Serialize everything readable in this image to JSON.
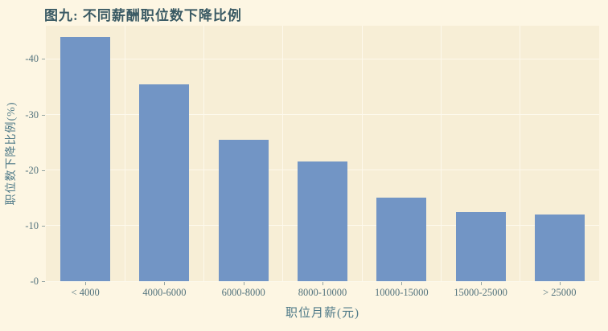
{
  "chart_data": {
    "type": "bar",
    "title": "图九: 不同薪酬职位数下降比例",
    "categories": [
      "< 4000",
      "4000-6000",
      "6000-8000",
      "8000-10000",
      "10000-15000",
      "15000-25000",
      "> 25000"
    ],
    "values": [
      -44,
      -35.5,
      -25.5,
      -21.5,
      -15,
      -12.5,
      -12
    ],
    "xlabel": "职位月薪(元)",
    "ylabel": "职位数下降比例(%)",
    "y_ticks": [
      {
        "value": 0,
        "label": "-0"
      },
      {
        "value": 10,
        "label": "-10"
      },
      {
        "value": 20,
        "label": "-20"
      },
      {
        "value": 30,
        "label": "-30"
      },
      {
        "value": 40,
        "label": "-40"
      }
    ],
    "ylim": [
      0,
      46
    ],
    "grid": "on",
    "legend": "none",
    "bar_color": "#7295c5",
    "background_color": "#fdf6e3",
    "panel_color": "#f7eed6"
  }
}
